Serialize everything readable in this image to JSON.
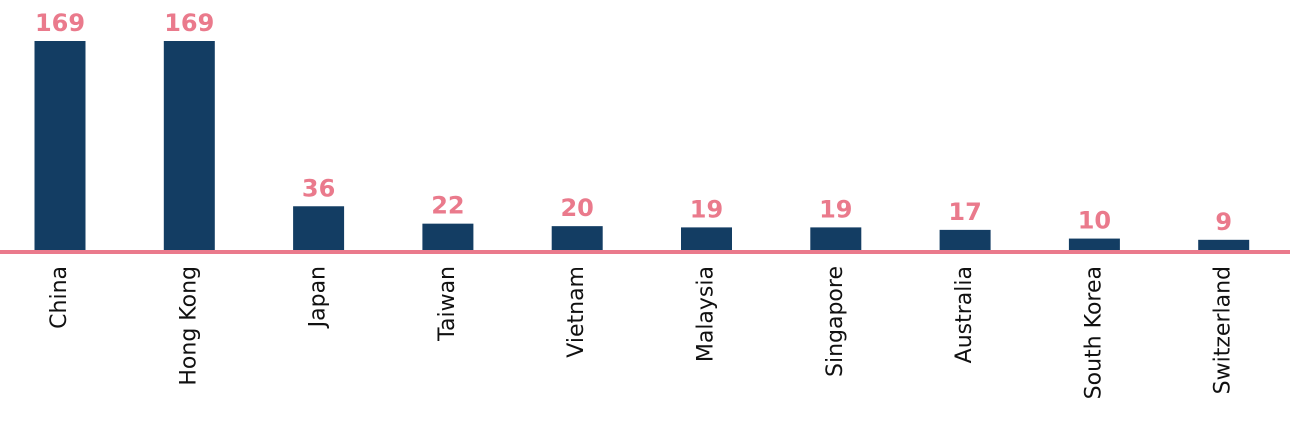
{
  "chart_data": {
    "type": "bar",
    "categories": [
      "China",
      "Hong Kong",
      "Japan",
      "Taiwan",
      "Vietnam",
      "Malaysia",
      "Singapore",
      "Australia",
      "South Korea",
      "Switzerland"
    ],
    "values": [
      169,
      169,
      36,
      22,
      20,
      19,
      19,
      17,
      10,
      9
    ],
    "color": "#133d63"
  }
}
